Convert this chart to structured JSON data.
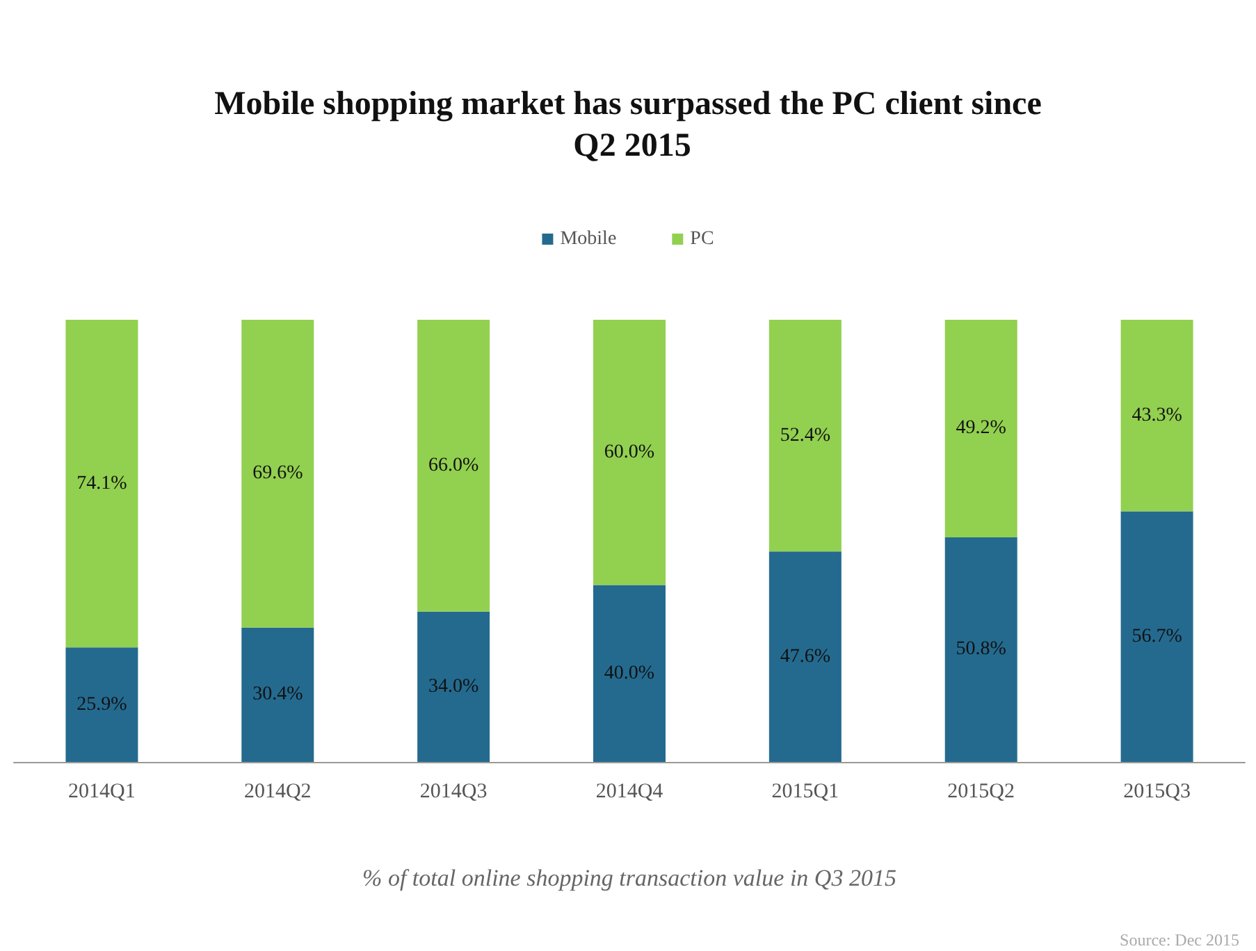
{
  "chart_data": {
    "type": "bar",
    "title": "Mobile shopping market has surpassed the PC client since Q2 2015",
    "xlabel": "% of total online shopping transaction value in Q3 2015",
    "annotations": [
      "Source: Dec 2015"
    ],
    "categories": [
      "2014Q1",
      "2014Q2",
      "2014Q3",
      "2014Q4",
      "2015Q1",
      "2015Q2",
      "2015Q3"
    ],
    "stacked": true,
    "ylim": [
      0,
      100
    ],
    "tick_labels": "x",
    "legend": "top",
    "series": [
      {
        "name": "Mobile",
        "color": "#246a8f",
        "values": [
          25.9,
          30.4,
          34.0,
          40.0,
          47.6,
          50.8,
          56.7
        ],
        "value_labels": [
          "25.9%",
          "30.4%",
          "34.0%",
          "40.0%",
          "47.6%",
          "50.8%",
          "56.7%"
        ]
      },
      {
        "name": "PC",
        "color": "#92d050",
        "values": [
          74.1,
          69.6,
          66.0,
          60.0,
          52.4,
          49.2,
          43.3
        ],
        "value_labels": [
          "74.1%",
          "69.6%",
          "66.0%",
          "60.0%",
          "52.4%",
          "49.2%",
          "43.3%"
        ]
      }
    ]
  }
}
